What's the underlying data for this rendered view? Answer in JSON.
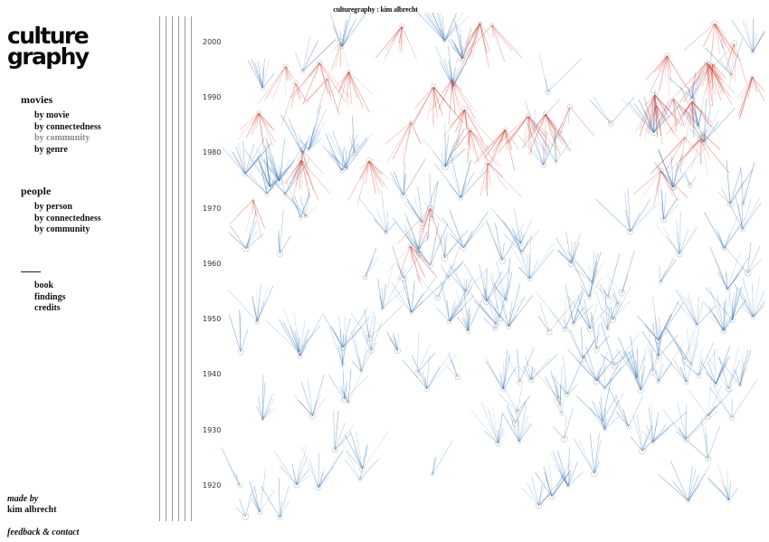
{
  "header": {
    "title": "culturegraphy : kim albrecht"
  },
  "logo": {
    "line1": "culture",
    "line2": "graphy"
  },
  "movies": {
    "heading": "movies",
    "items": [
      {
        "label": "by movie",
        "active": false
      },
      {
        "label": "by connectedness",
        "active": false
      },
      {
        "label": "by community",
        "active": true
      },
      {
        "label": "by genre",
        "active": false
      }
    ]
  },
  "people": {
    "heading": "people",
    "items": [
      {
        "label": "by person"
      },
      {
        "label": "by connectedness"
      },
      {
        "label": "by community"
      }
    ]
  },
  "other": {
    "items": [
      {
        "label": "book"
      },
      {
        "label": "findings"
      },
      {
        "label": "credits"
      }
    ]
  },
  "footer": {
    "made_by": "made by",
    "author": "kim albrecht",
    "feedback": "feedback & contact"
  },
  "axis": {
    "years": [
      "2000",
      "1990",
      "1980",
      "1970",
      "1960",
      "1950",
      "1940",
      "1930",
      "1920"
    ]
  },
  "colors": {
    "older_influence": "#2f6fb3",
    "newer_influence": "#d63a2f",
    "node": "#9a9a9a"
  }
}
